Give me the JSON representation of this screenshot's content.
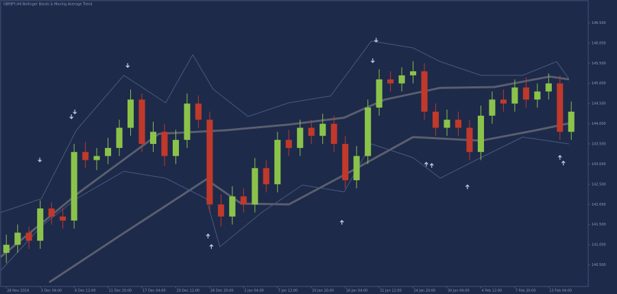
{
  "chart_data": {
    "type": "candlestick",
    "title": "GBPJPY,H4  Bollinger Bands & Moving Average Trend",
    "background": "#1e2a4a",
    "xlim": [
      -0.5,
      51.5
    ],
    "xticks": [
      {
        "value": 0,
        "label": "28 Nov 2019"
      },
      {
        "value": 3,
        "label": "3 Dec 04:00"
      },
      {
        "value": 6,
        "label": "6 Dec 12:00"
      },
      {
        "value": 9,
        "label": "11 Dec 20:00"
      },
      {
        "value": 12,
        "label": "17 Dec 04:00"
      },
      {
        "value": 15,
        "label": "20 Dec 12:00"
      },
      {
        "value": 18,
        "label": "26 Dec 20:00"
      },
      {
        "value": 21,
        "label": "2 Jan 04:00"
      },
      {
        "value": 24,
        "label": "7 Jan 12:00"
      },
      {
        "value": 27,
        "label": "10 Jan 20:00"
      },
      {
        "value": 30,
        "label": "16 Jan 04:00"
      },
      {
        "value": 33,
        "label": "21 Jan 12:00"
      },
      {
        "value": 36,
        "label": "24 Jan 20:00"
      },
      {
        "value": 39,
        "label": "30 Jan 04:00"
      },
      {
        "value": 42,
        "label": "4 Feb 12:00"
      },
      {
        "value": 45,
        "label": "7 Feb 20:00"
      },
      {
        "value": 48,
        "label": "13 Feb 04:00"
      }
    ],
    "ylim": [
      140,
      147
    ],
    "yticks": [
      {
        "value": 140.5,
        "label": "140.500"
      },
      {
        "value": 141,
        "label": "141.000"
      },
      {
        "value": 141.5,
        "label": "141.500"
      },
      {
        "value": 142,
        "label": "142.000"
      },
      {
        "value": 142.5,
        "label": "142.500"
      },
      {
        "value": 143,
        "label": "143.000"
      },
      {
        "value": 143.5,
        "label": "143.500"
      },
      {
        "value": 144,
        "label": "144.000"
      },
      {
        "value": 144.5,
        "label": "144.500"
      },
      {
        "value": 145,
        "label": "145.000"
      },
      {
        "value": 145.5,
        "label": "145.500"
      },
      {
        "value": 146,
        "label": "146.000"
      },
      {
        "value": 146.5,
        "label": "146.500"
      }
    ],
    "candles": {
      "up_color": "#8bc34a",
      "down_color": "#c0392b",
      "x": [
        0,
        1,
        2,
        3,
        4,
        5,
        6,
        7,
        8,
        9,
        10,
        11,
        12,
        13,
        14,
        15,
        16,
        17,
        18,
        19,
        20,
        21,
        22,
        23,
        24,
        25,
        26,
        27,
        28,
        29,
        30,
        31,
        32,
        33,
        34,
        35,
        36,
        37,
        38,
        39,
        40,
        41,
        42,
        43,
        44,
        45,
        46,
        47,
        48,
        49,
        50
      ],
      "open": [
        140.8,
        141.0,
        141.3,
        141.1,
        141.9,
        141.7,
        141.6,
        143.3,
        143.1,
        143.2,
        143.4,
        143.9,
        144.6,
        143.5,
        143.8,
        143.2,
        143.6,
        144.5,
        144.1,
        142.0,
        141.7,
        142.2,
        142.0,
        142.9,
        142.5,
        143.6,
        143.4,
        143.9,
        143.7,
        144.0,
        143.5,
        142.6,
        143.2,
        144.4,
        145.1,
        145.0,
        145.2,
        145.3,
        144.3,
        143.9,
        144.1,
        143.9,
        143.3,
        144.2,
        144.6,
        144.5,
        144.9,
        144.6,
        144.8,
        145.0,
        143.8
      ],
      "high": [
        141.25,
        141.5,
        141.45,
        142.1,
        142.05,
        141.9,
        143.5,
        143.55,
        143.4,
        143.65,
        144.1,
        144.85,
        144.75,
        144.05,
        144.0,
        143.85,
        144.75,
        144.7,
        144.3,
        142.25,
        142.45,
        142.4,
        143.15,
        143.1,
        143.8,
        143.85,
        144.1,
        144.1,
        144.25,
        144.2,
        143.7,
        143.45,
        144.6,
        145.35,
        145.3,
        145.4,
        145.55,
        145.5,
        144.5,
        144.35,
        144.3,
        144.1,
        144.45,
        144.8,
        144.85,
        145.1,
        145.15,
        145.0,
        145.25,
        145.2,
        144.55
      ],
      "low": [
        140.55,
        140.8,
        140.9,
        140.9,
        141.5,
        141.4,
        141.4,
        142.9,
        142.85,
        143.0,
        143.2,
        143.7,
        143.3,
        143.3,
        142.95,
        143.0,
        143.4,
        143.9,
        141.8,
        141.45,
        141.5,
        141.8,
        141.8,
        142.3,
        142.3,
        143.2,
        143.2,
        143.5,
        143.5,
        143.3,
        142.4,
        142.4,
        143.0,
        144.2,
        144.8,
        144.8,
        145.0,
        144.1,
        143.7,
        143.7,
        143.7,
        143.1,
        143.1,
        144.0,
        144.3,
        144.3,
        144.4,
        144.4,
        144.6,
        143.6,
        143.6
      ],
      "close": [
        141.0,
        141.3,
        141.1,
        141.9,
        141.7,
        141.6,
        143.3,
        143.1,
        143.2,
        143.4,
        143.9,
        144.6,
        143.5,
        143.8,
        143.2,
        143.6,
        144.5,
        144.1,
        142.0,
        141.7,
        142.2,
        142.0,
        142.9,
        142.5,
        143.6,
        143.4,
        143.9,
        143.7,
        144.0,
        143.5,
        142.6,
        143.2,
        144.4,
        145.1,
        145.0,
        145.2,
        145.3,
        144.3,
        143.9,
        144.1,
        143.9,
        143.3,
        144.2,
        144.6,
        144.5,
        144.9,
        144.6,
        144.8,
        145.0,
        143.8,
        144.3
      ]
    },
    "overlays": [
      {
        "color": "#5a5f6e",
        "width": 3,
        "x": [
          -0.5,
          6.5,
          13.5,
          19.5,
          25,
          29.9,
          33.5,
          38.4,
          43.2,
          48.1,
          49.8
        ],
        "values": [
          140.7,
          142.31,
          143.75,
          143.84,
          143.98,
          144.15,
          144.6,
          144.89,
          144.91,
          145.17,
          145.1
        ]
      },
      {
        "color": "#5a5f6e",
        "width": 3,
        "x": [
          3.8,
          10.4,
          17.7,
          20.8,
          25,
          30.5,
          36,
          42,
          46.9,
          49.8
        ],
        "values": [
          140.07,
          141.29,
          142.62,
          142.02,
          142.0,
          142.82,
          143.67,
          143.58,
          143.84,
          144.01
        ]
      },
      {
        "color": "#4a5a80",
        "width": 1,
        "x": [
          -0.5,
          3.1,
          6.2,
          10.4,
          14.1,
          16.5,
          18.3,
          21.4,
          25,
          28.7,
          32.3,
          36,
          38.4,
          42,
          45.7,
          48.7,
          49.8
        ],
        "values": [
          141.8,
          142.14,
          143.84,
          145.2,
          144.52,
          145.71,
          144.86,
          144.18,
          144.52,
          144.69,
          146.05,
          145.88,
          145.54,
          145.2,
          145.2,
          145.54,
          145.11
        ]
      },
      {
        "color": "#4a5a80",
        "width": 1,
        "x": [
          -0.5,
          3.1,
          6.2,
          10.4,
          14.1,
          17.7,
          18.9,
          22.6,
          26.2,
          29.9,
          32.3,
          36,
          38.4,
          42,
          45.7,
          49.8
        ],
        "values": [
          140.36,
          141.46,
          142.14,
          142.82,
          142.65,
          142.14,
          140.95,
          141.8,
          142.48,
          142.31,
          143.5,
          143.16,
          142.65,
          143.16,
          143.67,
          143.5
        ]
      }
    ],
    "signals": {
      "color": "#c8d2ee",
      "down": {
        "x": [
          2.96,
          5.76,
          6.06,
          10.74,
          32.43,
          32.73
        ],
        "values": [
          143.11,
          144.18,
          144.3,
          145.45,
          145.57,
          146.08
        ]
      },
      "up": {
        "x": [
          17.85,
          18.15,
          29.7,
          37.17,
          37.65,
          40.81,
          49.0,
          49.3
        ],
        "values": [
          141.21,
          140.95,
          141.55,
          142.99,
          142.96,
          142.43,
          143.16,
          143.02
        ]
      }
    }
  }
}
